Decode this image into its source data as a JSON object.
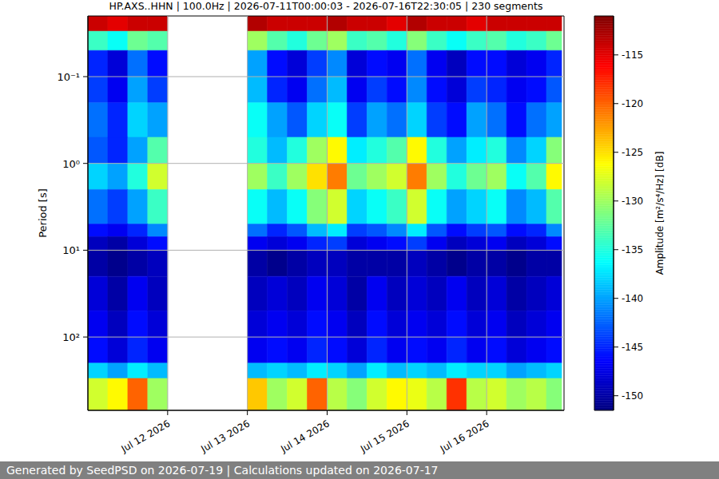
{
  "chart_data": {
    "type": "heatmap",
    "title": "HP.AXS..HHN | 100.0Hz | 2026-07-11T00:00:03 - 2026-07-16T22:30:05 | 230 segments",
    "y_label": "Period [s]",
    "log": "y",
    "grid": true,
    "xlim": [
      11,
      16.97
    ],
    "xticks": [
      {
        "value": 12,
        "label": "Jul 12 2026"
      },
      {
        "value": 13,
        "label": "Jul 13 2026"
      },
      {
        "value": 14,
        "label": "Jul 14 2026"
      },
      {
        "value": 15,
        "label": "Jul 15 2026"
      },
      {
        "value": 16,
        "label": "Jul 16 2026"
      }
    ],
    "ylim": [
      0.02,
      700
    ],
    "yticks": [
      {
        "value": 0.1,
        "label": "10⁻¹"
      },
      {
        "value": 1,
        "label": "10⁰"
      },
      {
        "value": 10,
        "label": "10¹"
      },
      {
        "value": 100,
        "label": "10²"
      }
    ],
    "x_bins": [
      11,
      11.25,
      11.5,
      11.75,
      12,
      12.25,
      12.5,
      12.75,
      13,
      13.25,
      13.5,
      13.75,
      14,
      14.25,
      14.5,
      14.75,
      15,
      15.25,
      15.5,
      15.75,
      16,
      16.25,
      16.5,
      16.75,
      16.94
    ],
    "y_bins": [
      0.02,
      0.03,
      0.05,
      0.1,
      0.2,
      0.5,
      1,
      2,
      5,
      7,
      10,
      20,
      50,
      100,
      200,
      300,
      700
    ],
    "cells": [
      [
        -114,
        -115,
        -114,
        -114,
        null,
        null,
        null,
        null,
        -113,
        -114,
        -114,
        -114,
        -113,
        -114,
        -114,
        -115,
        -113,
        -114,
        -114,
        -115,
        -114,
        -114,
        -114,
        -114
      ],
      [
        -134,
        -136,
        -132,
        -133,
        null,
        null,
        null,
        null,
        -130,
        -133,
        -135,
        -132,
        -130,
        -134,
        -133,
        -135,
        -131,
        -134,
        -136,
        -134,
        -133,
        -135,
        -134,
        -132
      ],
      [
        -145,
        -148,
        -142,
        -146,
        null,
        null,
        null,
        null,
        -140,
        -146,
        -148,
        -144,
        -141,
        -148,
        -146,
        -147,
        -142,
        -147,
        -149,
        -146,
        -146,
        -148,
        -147,
        -145
      ],
      [
        -144,
        -147,
        -140,
        -144,
        null,
        null,
        null,
        null,
        -139,
        -145,
        -147,
        -142,
        -139,
        -147,
        -144,
        -146,
        -141,
        -146,
        -148,
        -144,
        -145,
        -147,
        -146,
        -143
      ],
      [
        -142,
        -145,
        -138,
        -140,
        null,
        null,
        null,
        null,
        -136,
        -140,
        -143,
        -138,
        -136,
        -144,
        -140,
        -142,
        -138,
        -144,
        -146,
        -140,
        -142,
        -146,
        -142,
        -140
      ],
      [
        -143,
        -145,
        -140,
        -133,
        null,
        null,
        null,
        null,
        -135,
        -139,
        -135,
        -130,
        -126,
        -137,
        -135,
        -133,
        -126,
        -135,
        -140,
        -137,
        -135,
        -141,
        -138,
        -131
      ],
      [
        -138,
        -140,
        -135,
        -128,
        null,
        null,
        null,
        null,
        -130,
        -134,
        -130,
        -125,
        -121,
        -132,
        -130,
        -128,
        -121,
        -130,
        -135,
        -132,
        -130,
        -136,
        -133,
        -126
      ],
      [
        -142,
        -144,
        -140,
        -134,
        null,
        null,
        null,
        null,
        -136,
        -139,
        -136,
        -131,
        -128,
        -138,
        -136,
        -134,
        -128,
        -136,
        -140,
        -138,
        -136,
        -141,
        -139,
        -133
      ],
      [
        -146,
        -147,
        -145,
        -141,
        null,
        null,
        null,
        null,
        -142,
        -145,
        -143,
        -139,
        -137,
        -144,
        -143,
        -141,
        -137,
        -143,
        -146,
        -144,
        -143,
        -146,
        -145,
        -141
      ],
      [
        -149,
        -150,
        -148,
        -146,
        null,
        null,
        null,
        null,
        -147,
        -148,
        -147,
        -145,
        -144,
        -148,
        -147,
        -146,
        -144,
        -147,
        -149,
        -148,
        -147,
        -149,
        -148,
        -146
      ],
      [
        -150,
        -151,
        -150,
        -149,
        null,
        null,
        null,
        null,
        -150,
        -151,
        -150,
        -149,
        -149,
        -150,
        -150,
        -150,
        -149,
        -150,
        -151,
        -150,
        -150,
        -151,
        -150,
        -150
      ],
      [
        -148,
        -150,
        -147,
        -149,
        null,
        null,
        null,
        null,
        -149,
        -148,
        -149,
        -147,
        -148,
        -150,
        -147,
        -149,
        -148,
        -149,
        -147,
        -149,
        -148,
        -150,
        -149,
        -148
      ],
      [
        -147,
        -149,
        -146,
        -148,
        null,
        null,
        null,
        null,
        -148,
        -147,
        -148,
        -146,
        -147,
        -149,
        -146,
        -148,
        -147,
        -148,
        -146,
        -148,
        -147,
        -149,
        -148,
        -147
      ],
      [
        -146,
        -148,
        -145,
        -147,
        null,
        null,
        null,
        null,
        -147,
        -146,
        -147,
        -145,
        -146,
        -148,
        -145,
        -147,
        -146,
        -147,
        -145,
        -147,
        -146,
        -148,
        -147,
        -146
      ],
      [
        -138,
        -140,
        -137,
        -139,
        null,
        null,
        null,
        null,
        -139,
        -138,
        -139,
        -137,
        -138,
        -140,
        -137,
        -139,
        -138,
        -139,
        -137,
        -138,
        -138,
        -140,
        -139,
        -138
      ],
      [
        -128,
        -126,
        -120,
        -130,
        null,
        null,
        null,
        null,
        -124,
        -130,
        -128,
        -120,
        -129,
        -131,
        -128,
        -126,
        -127,
        -129,
        -118,
        -129,
        -128,
        -130,
        -129,
        -131
      ]
    ],
    "colorbar": {
      "label": "Amplitude [m²/s⁴/Hz] [dB]",
      "range": [
        -151.5,
        -111
      ],
      "ticks": [
        -150,
        -145,
        -140,
        -135,
        -130,
        -125,
        -120,
        -115
      ]
    },
    "footer": "Generated by SeedPSD on 2026-07-19 | Calculations updated on 2026-07-17"
  }
}
